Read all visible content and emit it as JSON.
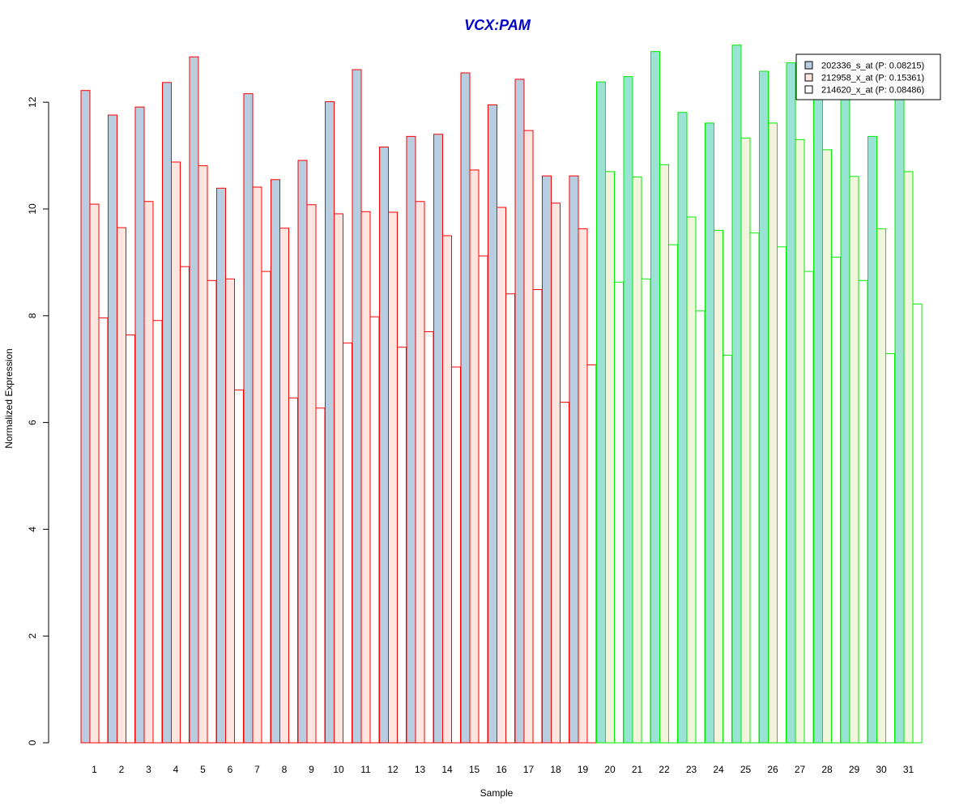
{
  "chart_data": {
    "type": "bar",
    "title": "VCX:PAM",
    "xlabel": "Sample",
    "ylabel": "Normalized Expression",
    "ylim": [
      0,
      13.4
    ],
    "yticks": [
      0,
      2,
      4,
      6,
      8,
      10,
      12
    ],
    "grid": false,
    "legend_position": "top-right",
    "categories": [
      "1",
      "2",
      "3",
      "4",
      "5",
      "6",
      "7",
      "8",
      "9",
      "10",
      "11",
      "12",
      "13",
      "14",
      "15",
      "16",
      "17",
      "18",
      "19",
      "20",
      "21",
      "22",
      "23",
      "24",
      "25",
      "26",
      "27",
      "28",
      "29",
      "30",
      "31"
    ],
    "groups": [
      {
        "range": [
          1,
          19
        ],
        "border_color": "#ff0000"
      },
      {
        "range": [
          20,
          31
        ],
        "border_color": "#00ee00"
      }
    ],
    "series": [
      {
        "name": "202336_s_at (P: 0.08215)",
        "fill_group1": "#b8cde0",
        "fill_group2": "#99e2d4",
        "values": [
          12.22,
          11.76,
          11.91,
          12.37,
          12.85,
          10.39,
          12.16,
          10.55,
          10.91,
          12.01,
          12.61,
          11.16,
          11.36,
          11.4,
          12.55,
          11.95,
          12.43,
          10.62,
          10.62,
          12.38,
          12.48,
          12.95,
          11.81,
          11.61,
          13.07,
          12.58,
          12.74,
          12.2,
          12.3,
          11.36,
          12.3
        ]
      },
      {
        "name": "212958_x_at (P: 0.15361)",
        "fill_group1": "#ffe5e0",
        "fill_group2": "#f1f5dc",
        "values": [
          10.09,
          9.65,
          10.14,
          10.88,
          10.81,
          8.69,
          10.41,
          9.64,
          10.08,
          9.91,
          9.95,
          9.94,
          10.14,
          9.5,
          10.73,
          10.03,
          11.47,
          10.11,
          9.63,
          10.7,
          10.6,
          10.83,
          9.85,
          9.6,
          11.33,
          11.61,
          11.3,
          11.11,
          10.61,
          9.63,
          10.7
        ]
      },
      {
        "name": "214620_x_at (P: 0.08486)",
        "fill_group1": "#ffffff",
        "fill_group2": "#ffffff",
        "values": [
          7.96,
          7.64,
          7.91,
          8.92,
          8.66,
          6.61,
          8.83,
          6.46,
          6.27,
          7.49,
          7.98,
          7.41,
          7.7,
          7.04,
          9.12,
          8.41,
          8.49,
          6.38,
          7.08,
          8.63,
          8.69,
          9.33,
          8.09,
          7.26,
          9.55,
          9.29,
          8.83,
          9.1,
          8.66,
          7.29,
          8.22
        ]
      }
    ]
  }
}
